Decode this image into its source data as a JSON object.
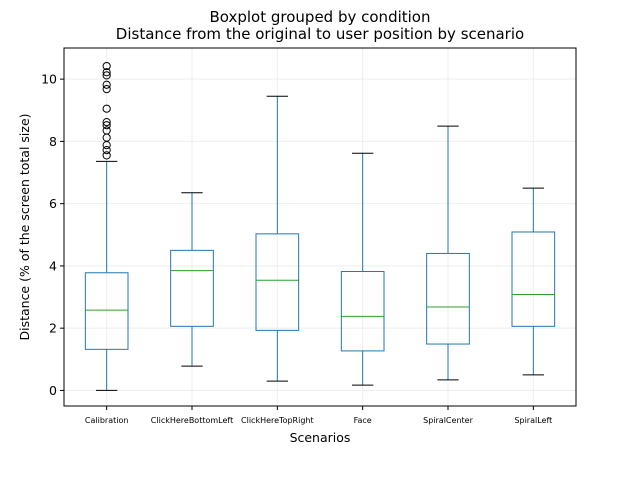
{
  "chart_data": {
    "type": "boxplot",
    "title": "Boxplot grouped by condition",
    "subtitle": "Distance from the original to user position by scenario",
    "xlabel": "Scenarios",
    "ylabel": "Distance (% of the screen total size)",
    "ylim": [
      -0.5,
      11.0
    ],
    "yticks": [
      0,
      2,
      4,
      6,
      8,
      10
    ],
    "grid": true,
    "colors": {
      "box": "#1f77b4",
      "median": "#2ca02c",
      "flier": "#000000",
      "grid": "#eeeeee"
    },
    "categories": [
      "Calibration",
      "ClickHereBottomLeft",
      "ClickHereTopRight",
      "Face",
      "SpiralCenter",
      "SpiralLeft"
    ],
    "boxes": [
      {
        "category": "Calibration",
        "whisker_low": 0.0,
        "q1": 1.32,
        "median": 2.58,
        "q3": 3.78,
        "whisker_high": 7.36,
        "outliers": [
          7.55,
          7.72,
          7.88,
          8.12,
          8.35,
          8.52,
          8.62,
          9.05,
          9.68,
          9.82,
          10.12,
          10.22,
          10.42
        ]
      },
      {
        "category": "ClickHereBottomLeft",
        "whisker_low": 0.78,
        "q1": 2.06,
        "median": 3.85,
        "q3": 4.5,
        "whisker_high": 6.35,
        "outliers": []
      },
      {
        "category": "ClickHereTopRight",
        "whisker_low": 0.3,
        "q1": 1.93,
        "median": 3.54,
        "q3": 5.03,
        "whisker_high": 9.45,
        "outliers": []
      },
      {
        "category": "Face",
        "whisker_low": 0.17,
        "q1": 1.27,
        "median": 2.38,
        "q3": 3.82,
        "whisker_high": 7.62,
        "outliers": []
      },
      {
        "category": "SpiralCenter",
        "whisker_low": 0.34,
        "q1": 1.49,
        "median": 2.68,
        "q3": 4.4,
        "whisker_high": 8.49,
        "outliers": []
      },
      {
        "category": "SpiralLeft",
        "whisker_low": 0.5,
        "q1": 2.06,
        "median": 3.08,
        "q3": 5.09,
        "whisker_high": 6.5,
        "outliers": []
      }
    ]
  }
}
